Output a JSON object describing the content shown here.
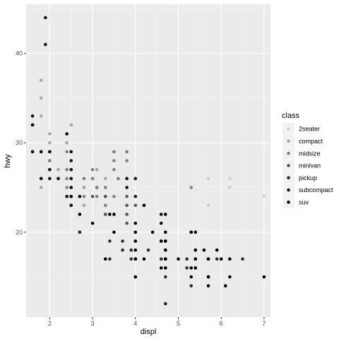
{
  "chart_data": {
    "type": "scatter",
    "title": "",
    "xlabel": "displ",
    "ylabel": "hwy",
    "xlim": [
      1.45,
      7.15
    ],
    "ylim": [
      10.5,
      45.5
    ],
    "x_ticks": [
      2,
      3,
      4,
      5,
      6,
      7
    ],
    "y_ticks": [
      20,
      30,
      40
    ],
    "x_tick_labels": [
      "2",
      "3",
      "4",
      "5",
      "6",
      "7"
    ],
    "y_tick_labels": [
      "20",
      "30",
      "40"
    ],
    "grid": true,
    "legend": {
      "title": "class",
      "position": "right"
    },
    "series": [
      {
        "name": "2seater",
        "color": "#d0d0d0",
        "points": [
          [
            5.7,
            26
          ],
          [
            5.7,
            23
          ],
          [
            6.2,
            26
          ],
          [
            6.2,
            25
          ],
          [
            7.0,
            24
          ]
        ]
      },
      {
        "name": "compact",
        "color": "#a6a6a6",
        "points": [
          [
            1.8,
            29
          ],
          [
            1.8,
            29
          ],
          [
            2.0,
            31
          ],
          [
            2.0,
            30
          ],
          [
            2.8,
            26
          ],
          [
            2.8,
            26
          ],
          [
            3.1,
            27
          ],
          [
            1.8,
            26
          ],
          [
            1.8,
            25
          ],
          [
            2.0,
            28
          ],
          [
            2.0,
            29
          ],
          [
            2.8,
            25
          ],
          [
            2.8,
            25
          ],
          [
            3.1,
            25
          ],
          [
            3.1,
            25
          ],
          [
            4.2,
            23
          ],
          [
            2.4,
            27
          ],
          [
            2.4,
            30
          ],
          [
            3.3,
            26
          ],
          [
            1.8,
            37
          ],
          [
            1.8,
            35
          ],
          [
            1.8,
            33
          ],
          [
            2.5,
            32
          ],
          [
            2.5,
            29
          ],
          [
            2.5,
            26
          ],
          [
            2.8,
            23
          ],
          [
            3.5,
            29
          ],
          [
            2.2,
            27
          ],
          [
            3.0,
            26
          ]
        ]
      },
      {
        "name": "midsize",
        "color": "#808080",
        "points": [
          [
            2.8,
            26
          ],
          [
            3.1,
            25
          ],
          [
            4.2,
            23
          ],
          [
            2.4,
            29
          ],
          [
            2.4,
            27
          ],
          [
            3.1,
            25
          ],
          [
            3.5,
            29
          ],
          [
            3.6,
            26
          ],
          [
            3.8,
            26
          ],
          [
            3.8,
            28
          ],
          [
            2.0,
            29
          ],
          [
            2.0,
            28
          ],
          [
            2.5,
            27
          ],
          [
            2.5,
            26
          ],
          [
            3.3,
            23
          ],
          [
            3.3,
            25
          ],
          [
            3.0,
            26
          ],
          [
            3.5,
            27
          ],
          [
            3.5,
            28
          ],
          [
            3.6,
            26
          ],
          [
            2.4,
            26
          ],
          [
            2.4,
            25
          ],
          [
            1.8,
            29
          ],
          [
            2.0,
            28
          ],
          [
            3.0,
            27
          ],
          [
            3.8,
            29
          ],
          [
            2.8,
            24
          ],
          [
            5.3,
            25
          ],
          [
            3.5,
            24
          ],
          [
            2.0,
            26
          ],
          [
            2.5,
            24
          ],
          [
            3.1,
            24
          ]
        ]
      },
      {
        "name": "minivan",
        "color": "#555555",
        "points": [
          [
            2.4,
            24
          ],
          [
            3.0,
            24
          ],
          [
            3.3,
            22
          ],
          [
            3.3,
            22
          ],
          [
            3.3,
            24
          ],
          [
            3.3,
            24
          ],
          [
            3.3,
            17
          ],
          [
            3.8,
            22
          ],
          [
            3.8,
            21
          ],
          [
            3.8,
            23
          ],
          [
            4.0,
            23
          ],
          [
            3.8,
            24
          ]
        ]
      },
      {
        "name": "pickup",
        "color": "#2e2e2e",
        "points": [
          [
            3.7,
            19
          ],
          [
            3.7,
            18
          ],
          [
            3.9,
            17
          ],
          [
            4.7,
            12
          ],
          [
            4.7,
            16
          ],
          [
            5.2,
            17
          ],
          [
            5.7,
            17
          ],
          [
            5.9,
            17
          ],
          [
            4.7,
            15
          ],
          [
            4.7,
            17
          ],
          [
            4.7,
            12
          ],
          [
            5.2,
            16
          ],
          [
            4.0,
            17
          ],
          [
            4.6,
            17
          ],
          [
            5.4,
            16
          ],
          [
            2.7,
            20
          ],
          [
            2.7,
            20
          ],
          [
            3.4,
            19
          ],
          [
            3.4,
            17
          ],
          [
            4.0,
            15
          ],
          [
            4.7,
            17
          ],
          [
            2.7,
            20
          ],
          [
            4.0,
            19
          ],
          [
            4.7,
            17
          ],
          [
            5.3,
            14
          ],
          [
            5.7,
            15
          ],
          [
            5.4,
            17
          ],
          [
            6.5,
            17
          ],
          [
            3.9,
            18
          ],
          [
            4.6,
            19
          ],
          [
            4.3,
            18
          ]
        ]
      },
      {
        "name": "subcompact",
        "color": "#141414",
        "points": [
          [
            3.8,
            26
          ],
          [
            3.8,
            25
          ],
          [
            4.0,
            26
          ],
          [
            4.0,
            24
          ],
          [
            4.6,
            21
          ],
          [
            4.6,
            22
          ],
          [
            5.4,
            18
          ],
          [
            5.4,
            20
          ],
          [
            5.4,
            20
          ],
          [
            1.8,
            29
          ],
          [
            1.8,
            26
          ],
          [
            1.8,
            26
          ],
          [
            1.6,
            29
          ],
          [
            1.6,
            32
          ],
          [
            1.6,
            32
          ],
          [
            1.6,
            29
          ],
          [
            1.6,
            32
          ],
          [
            1.8,
            29
          ],
          [
            1.8,
            29
          ],
          [
            2.0,
            27
          ],
          [
            2.0,
            29
          ],
          [
            2.0,
            29
          ],
          [
            2.0,
            27
          ],
          [
            2.4,
            24
          ],
          [
            2.4,
            24
          ],
          [
            2.5,
            27
          ],
          [
            2.5,
            26
          ],
          [
            2.2,
            26
          ],
          [
            2.2,
            26
          ],
          [
            1.9,
            44
          ],
          [
            1.9,
            41
          ],
          [
            2.0,
            29
          ],
          [
            2.0,
            26
          ],
          [
            2.5,
            28
          ],
          [
            2.5,
            29
          ],
          [
            1.6,
            33
          ]
        ]
      },
      {
        "name": "suv",
        "color": "#000000",
        "points": [
          [
            5.3,
            20
          ],
          [
            5.3,
            15
          ],
          [
            5.3,
            20
          ],
          [
            5.7,
            17
          ],
          [
            6.0,
            17
          ],
          [
            5.7,
            15
          ],
          [
            5.7,
            15
          ],
          [
            6.2,
            17
          ],
          [
            6.2,
            15
          ],
          [
            7.0,
            15
          ],
          [
            4.0,
            17
          ],
          [
            4.0,
            17
          ],
          [
            4.0,
            15
          ],
          [
            4.7,
            19
          ],
          [
            4.7,
            19
          ],
          [
            4.7,
            18
          ],
          [
            4.7,
            17
          ],
          [
            4.7,
            17
          ],
          [
            5.7,
            14
          ],
          [
            6.1,
            14
          ],
          [
            4.0,
            20
          ],
          [
            4.2,
            17
          ],
          [
            4.4,
            20
          ],
          [
            4.6,
            16
          ],
          [
            5.4,
            17
          ],
          [
            5.4,
            18
          ],
          [
            4.0,
            18
          ],
          [
            4.7,
            22
          ],
          [
            4.7,
            19
          ],
          [
            5.7,
            17
          ],
          [
            4.0,
            17
          ],
          [
            4.0,
            17
          ],
          [
            4.6,
            19
          ],
          [
            5.0,
            17
          ],
          [
            3.3,
            17
          ],
          [
            5.3,
            16
          ],
          [
            2.5,
            25
          ],
          [
            2.5,
            24
          ],
          [
            2.7,
            24
          ],
          [
            2.7,
            22
          ],
          [
            3.4,
            22
          ],
          [
            4.0,
            21
          ],
          [
            4.7,
            18
          ],
          [
            4.7,
            17
          ],
          [
            4.7,
            17
          ],
          [
            2.5,
            23
          ],
          [
            2.5,
            24
          ],
          [
            3.5,
            20
          ],
          [
            4.0,
            19
          ],
          [
            5.6,
            18
          ],
          [
            3.0,
            21
          ],
          [
            3.5,
            22
          ],
          [
            4.7,
            20
          ],
          [
            4.2,
            23
          ],
          [
            5.4,
            16
          ],
          [
            5.9,
            18
          ],
          [
            4.7,
            16
          ],
          [
            2.4,
            31
          ]
        ]
      }
    ]
  }
}
